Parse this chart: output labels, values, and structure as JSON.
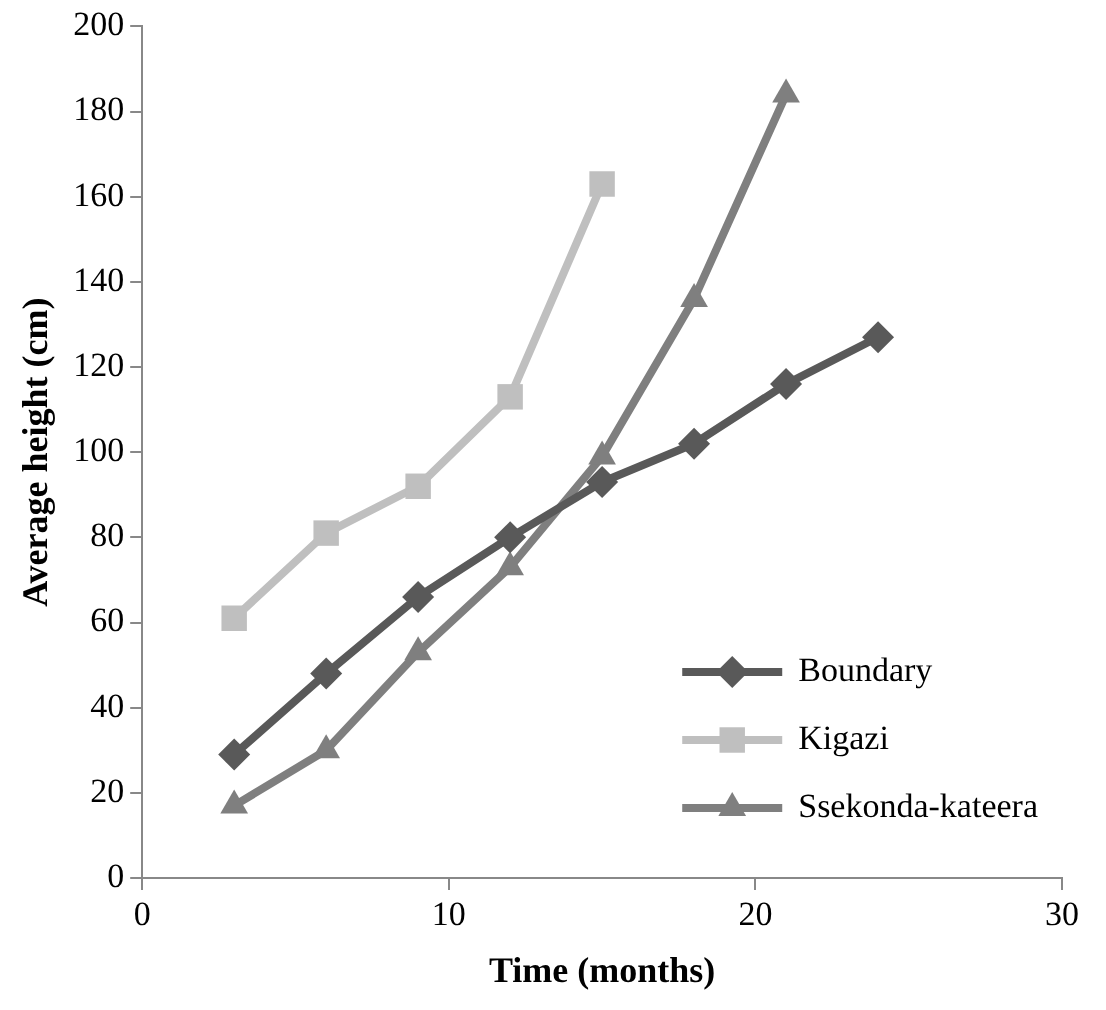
{
  "chart_data": {
    "type": "line",
    "xlabel": "Time (months)",
    "ylabel": "Average height (cm)",
    "xlim": [
      0,
      30
    ],
    "xticks": [
      0,
      10,
      20,
      30
    ],
    "ylim": [
      0,
      200
    ],
    "yticks": [
      0,
      20,
      40,
      60,
      80,
      100,
      120,
      140,
      160,
      180,
      200
    ],
    "grid": false,
    "legend": "bottom right",
    "line_style": "solid",
    "series": [
      {
        "name": "Boundary",
        "color": "#595959",
        "marker": "diamond",
        "x": [
          3,
          6,
          9,
          12,
          15,
          18,
          21,
          24
        ],
        "values": [
          29,
          48,
          66,
          80,
          93,
          102,
          116,
          127
        ]
      },
      {
        "name": "Kigazi",
        "color": "#bfbfbf",
        "marker": "square",
        "x": [
          3,
          6,
          9,
          12,
          15
        ],
        "values": [
          61,
          81,
          92,
          113,
          163
        ]
      },
      {
        "name": "Ssekonda-kateera",
        "color": "#7f7f7f",
        "marker": "triangle",
        "x": [
          3,
          6,
          9,
          12,
          15,
          18,
          21
        ],
        "values": [
          17,
          30,
          53,
          73,
          99,
          136,
          184
        ]
      }
    ]
  }
}
